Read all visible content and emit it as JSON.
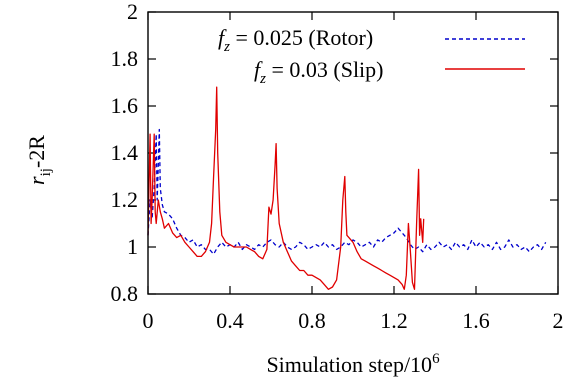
{
  "chart_data": {
    "type": "line",
    "xlabel": "Simulation step/10",
    "xlabel_sup": "6",
    "ylabel_r": "r",
    "ylabel_sub": "ij",
    "ylabel_rest": "-2R",
    "xlim": [
      0,
      2
    ],
    "ylim": [
      0.8,
      2
    ],
    "xticks": [
      "0",
      "0.4",
      "0.8",
      "1.2",
      "1.6",
      "2"
    ],
    "yticks": [
      "0.8",
      "1",
      "1.2",
      "1.4",
      "1.6",
      "1.8",
      "2"
    ],
    "grid": false,
    "legend_position": "top-right",
    "series": [
      {
        "name": "f_z = 0.025 (Rotor)",
        "legend_f": "f",
        "legend_sub": "z",
        "legend_rest": " = 0.025 (Rotor)",
        "color": "#0000cc",
        "style": "dashed",
        "points": [
          [
            0.0,
            1.05
          ],
          [
            0.01,
            1.2
          ],
          [
            0.02,
            1.12
          ],
          [
            0.03,
            1.25
          ],
          [
            0.04,
            1.48
          ],
          [
            0.045,
            1.2
          ],
          [
            0.05,
            1.35
          ],
          [
            0.055,
            1.5
          ],
          [
            0.06,
            1.25
          ],
          [
            0.07,
            1.18
          ],
          [
            0.08,
            1.15
          ],
          [
            0.1,
            1.14
          ],
          [
            0.12,
            1.12
          ],
          [
            0.14,
            1.08
          ],
          [
            0.16,
            1.05
          ],
          [
            0.18,
            1.04
          ],
          [
            0.2,
            1.02
          ],
          [
            0.22,
            1.03
          ],
          [
            0.24,
            1.0
          ],
          [
            0.26,
            1.01
          ],
          [
            0.28,
            0.99
          ],
          [
            0.3,
            0.99
          ],
          [
            0.32,
            0.97
          ],
          [
            0.34,
            1.0
          ],
          [
            0.36,
            1.02
          ],
          [
            0.38,
            1.0
          ],
          [
            0.4,
            1.01
          ],
          [
            0.42,
            1.0
          ],
          [
            0.44,
            1.02
          ],
          [
            0.46,
            0.99
          ],
          [
            0.48,
            1.01
          ],
          [
            0.5,
            1.0
          ],
          [
            0.52,
            0.99
          ],
          [
            0.54,
            1.01
          ],
          [
            0.56,
            1.0
          ],
          [
            0.58,
            1.02
          ],
          [
            0.6,
            1.03
          ],
          [
            0.62,
            1.01
          ],
          [
            0.64,
            1.0
          ],
          [
            0.66,
            1.02
          ],
          [
            0.68,
            1.0
          ],
          [
            0.7,
            0.99
          ],
          [
            0.72,
            1.0
          ],
          [
            0.74,
            1.02
          ],
          [
            0.76,
            1.01
          ],
          [
            0.78,
            0.99
          ],
          [
            0.8,
            1.0
          ],
          [
            0.82,
            1.01
          ],
          [
            0.84,
            1.0
          ],
          [
            0.86,
            1.02
          ],
          [
            0.88,
            1.0
          ],
          [
            0.9,
            1.01
          ],
          [
            0.92,
            0.99
          ],
          [
            0.94,
            1.0
          ],
          [
            0.96,
            1.02
          ],
          [
            0.98,
            1.01
          ],
          [
            1.0,
            1.03
          ],
          [
            1.02,
            1.02
          ],
          [
            1.04,
            1.0
          ],
          [
            1.06,
            1.01
          ],
          [
            1.08,
            1.02
          ],
          [
            1.1,
            1.0
          ],
          [
            1.12,
            1.03
          ],
          [
            1.14,
            1.02
          ],
          [
            1.16,
            1.04
          ],
          [
            1.18,
            1.05
          ],
          [
            1.2,
            1.06
          ],
          [
            1.22,
            1.08
          ],
          [
            1.24,
            1.06
          ],
          [
            1.26,
            1.04
          ],
          [
            1.28,
            1.01
          ],
          [
            1.3,
            0.99
          ],
          [
            1.32,
            1.0
          ],
          [
            1.34,
            0.98
          ],
          [
            1.36,
            1.01
          ],
          [
            1.38,
            0.99
          ],
          [
            1.4,
            1.0
          ],
          [
            1.42,
            1.02
          ],
          [
            1.44,
            1.0
          ],
          [
            1.46,
            1.01
          ],
          [
            1.48,
            0.99
          ],
          [
            1.5,
            1.02
          ],
          [
            1.52,
            1.0
          ],
          [
            1.54,
            1.01
          ],
          [
            1.56,
            0.99
          ],
          [
            1.58,
            1.03
          ],
          [
            1.6,
            1.0
          ],
          [
            1.62,
            1.02
          ],
          [
            1.64,
            1.0
          ],
          [
            1.66,
            1.01
          ],
          [
            1.68,
            0.99
          ],
          [
            1.7,
            1.02
          ],
          [
            1.72,
            0.99
          ],
          [
            1.74,
            1.0
          ],
          [
            1.76,
            1.03
          ],
          [
            1.78,
            1.0
          ],
          [
            1.8,
            1.01
          ],
          [
            1.82,
            0.99
          ],
          [
            1.84,
            1.0
          ],
          [
            1.86,
            0.98
          ],
          [
            1.88,
            1.0
          ],
          [
            1.9,
            1.01
          ],
          [
            1.92,
            0.99
          ],
          [
            1.94,
            1.02
          ]
        ]
      },
      {
        "name": "f_z = 0.03 (Slip)",
        "legend_f": "f",
        "legend_sub": "z",
        "legend_rest": " = 0.03 (Slip)",
        "color": "#e00000",
        "style": "solid",
        "points": [
          [
            0.0,
            1.05
          ],
          [
            0.01,
            1.48
          ],
          [
            0.015,
            1.1
          ],
          [
            0.02,
            1.2
          ],
          [
            0.03,
            1.48
          ],
          [
            0.035,
            1.15
          ],
          [
            0.04,
            1.1
          ],
          [
            0.05,
            1.2
          ],
          [
            0.06,
            1.15
          ],
          [
            0.07,
            1.12
          ],
          [
            0.08,
            1.08
          ],
          [
            0.1,
            1.1
          ],
          [
            0.12,
            1.06
          ],
          [
            0.14,
            1.04
          ],
          [
            0.16,
            1.05
          ],
          [
            0.18,
            1.02
          ],
          [
            0.2,
            1.0
          ],
          [
            0.22,
            0.98
          ],
          [
            0.24,
            0.96
          ],
          [
            0.26,
            0.96
          ],
          [
            0.28,
            0.98
          ],
          [
            0.3,
            1.02
          ],
          [
            0.31,
            1.1
          ],
          [
            0.32,
            1.3
          ],
          [
            0.33,
            1.5
          ],
          [
            0.335,
            1.68
          ],
          [
            0.34,
            1.4
          ],
          [
            0.35,
            1.15
          ],
          [
            0.36,
            1.05
          ],
          [
            0.38,
            1.02
          ],
          [
            0.4,
            1.01
          ],
          [
            0.42,
            1.0
          ],
          [
            0.44,
            1.0
          ],
          [
            0.46,
            1.0
          ],
          [
            0.48,
            1.0
          ],
          [
            0.5,
            0.99
          ],
          [
            0.52,
            0.98
          ],
          [
            0.54,
            0.96
          ],
          [
            0.56,
            0.95
          ],
          [
            0.58,
            0.99
          ],
          [
            0.59,
            1.17
          ],
          [
            0.6,
            1.14
          ],
          [
            0.61,
            1.2
          ],
          [
            0.62,
            1.35
          ],
          [
            0.625,
            1.44
          ],
          [
            0.63,
            1.25
          ],
          [
            0.64,
            1.1
          ],
          [
            0.66,
            1.02
          ],
          [
            0.68,
            0.98
          ],
          [
            0.7,
            0.94
          ],
          [
            0.72,
            0.92
          ],
          [
            0.74,
            0.9
          ],
          [
            0.76,
            0.9
          ],
          [
            0.78,
            0.88
          ],
          [
            0.8,
            0.88
          ],
          [
            0.82,
            0.87
          ],
          [
            0.84,
            0.86
          ],
          [
            0.86,
            0.84
          ],
          [
            0.88,
            0.82
          ],
          [
            0.9,
            0.83
          ],
          [
            0.92,
            0.86
          ],
          [
            0.94,
            1.0
          ],
          [
            0.95,
            1.2
          ],
          [
            0.96,
            1.3
          ],
          [
            0.965,
            1.15
          ],
          [
            0.97,
            1.05
          ],
          [
            0.98,
            1.04
          ],
          [
            1.0,
            1.02
          ],
          [
            1.02,
            0.98
          ],
          [
            1.04,
            0.95
          ],
          [
            1.06,
            0.94
          ],
          [
            1.08,
            0.93
          ],
          [
            1.1,
            0.92
          ],
          [
            1.12,
            0.91
          ],
          [
            1.14,
            0.9
          ],
          [
            1.16,
            0.89
          ],
          [
            1.18,
            0.88
          ],
          [
            1.2,
            0.87
          ],
          [
            1.22,
            0.86
          ],
          [
            1.24,
            0.84
          ],
          [
            1.25,
            0.82
          ],
          [
            1.26,
            0.88
          ],
          [
            1.27,
            1.1
          ],
          [
            1.28,
            0.98
          ],
          [
            1.29,
            0.85
          ],
          [
            1.3,
            0.82
          ],
          [
            1.31,
            1.1
          ],
          [
            1.32,
            1.33
          ],
          [
            1.325,
            1.05
          ],
          [
            1.33,
            1.12
          ],
          [
            1.34,
            1.02
          ],
          [
            1.345,
            1.12
          ]
        ]
      }
    ]
  }
}
